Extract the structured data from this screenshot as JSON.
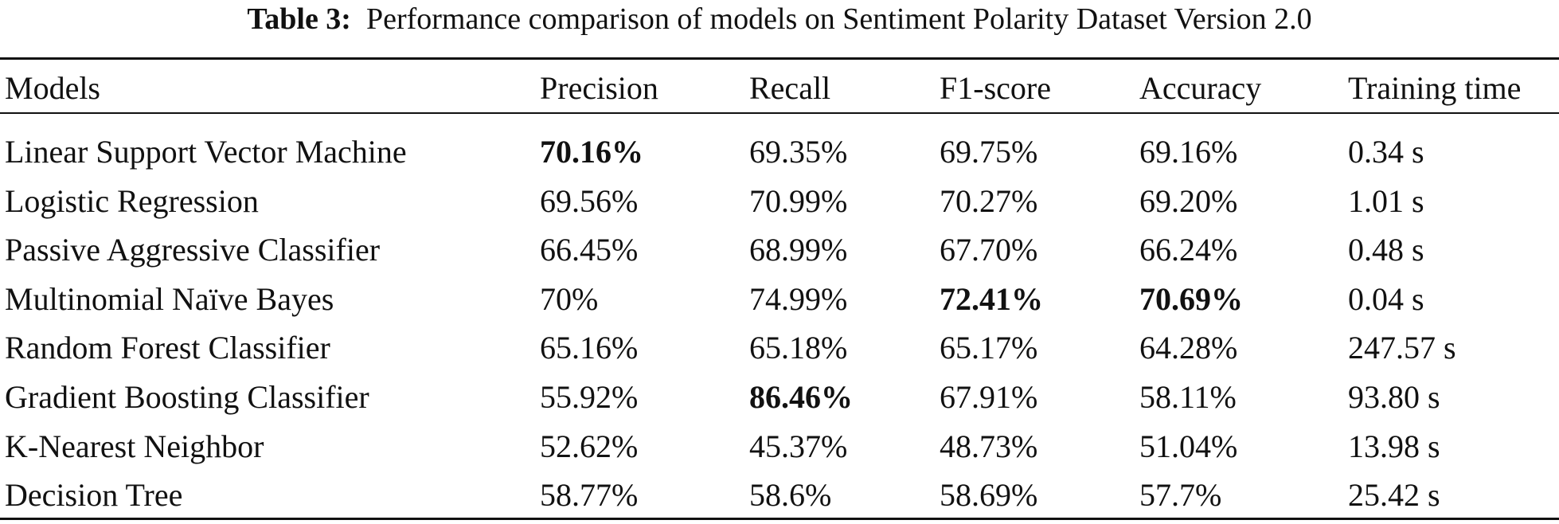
{
  "caption": {
    "label": "Table 3:",
    "text": "Performance comparison of models on Sentiment Polarity Dataset Version 2.0"
  },
  "table": {
    "headers": [
      "Models",
      "Precision",
      "Recall",
      "F1-score",
      "Accuracy",
      "Training time"
    ],
    "rows": [
      {
        "model": "Linear Support Vector Machine",
        "precision": "70.16%",
        "recall": "69.35%",
        "f1": "69.75%",
        "accuracy": "69.16%",
        "time": "0.34 s",
        "bold": [
          "precision"
        ]
      },
      {
        "model": "Logistic Regression",
        "precision": "69.56%",
        "recall": "70.99%",
        "f1": "70.27%",
        "accuracy": "69.20%",
        "time": "1.01 s",
        "bold": []
      },
      {
        "model": "Passive Aggressive Classifier",
        "precision": "66.45%",
        "recall": "68.99%",
        "f1": "67.70%",
        "accuracy": "66.24%",
        "time": "0.48 s",
        "bold": []
      },
      {
        "model": "Multinomial Naïve Bayes",
        "precision": "70%",
        "recall": "74.99%",
        "f1": "72.41%",
        "accuracy": "70.69%",
        "time": "0.04 s",
        "bold": [
          "f1",
          "accuracy"
        ]
      },
      {
        "model": "Random Forest Classifier",
        "precision": "65.16%",
        "recall": "65.18%",
        "f1": "65.17%",
        "accuracy": "64.28%",
        "time": "247.57 s",
        "bold": []
      },
      {
        "model": "Gradient Boosting Classifier",
        "precision": "55.92%",
        "recall": "86.46%",
        "f1": "67.91%",
        "accuracy": "58.11%",
        "time": "93.80 s",
        "bold": [
          "recall"
        ]
      },
      {
        "model": "K-Nearest Neighbor",
        "precision": "52.62%",
        "recall": "45.37%",
        "f1": "48.73%",
        "accuracy": "51.04%",
        "time": "13.98 s",
        "bold": []
      },
      {
        "model": "Decision Tree",
        "precision": "58.77%",
        "recall": "58.6%",
        "f1": "58.69%",
        "accuracy": "57.7%",
        "time": "25.42 s",
        "bold": []
      }
    ]
  }
}
